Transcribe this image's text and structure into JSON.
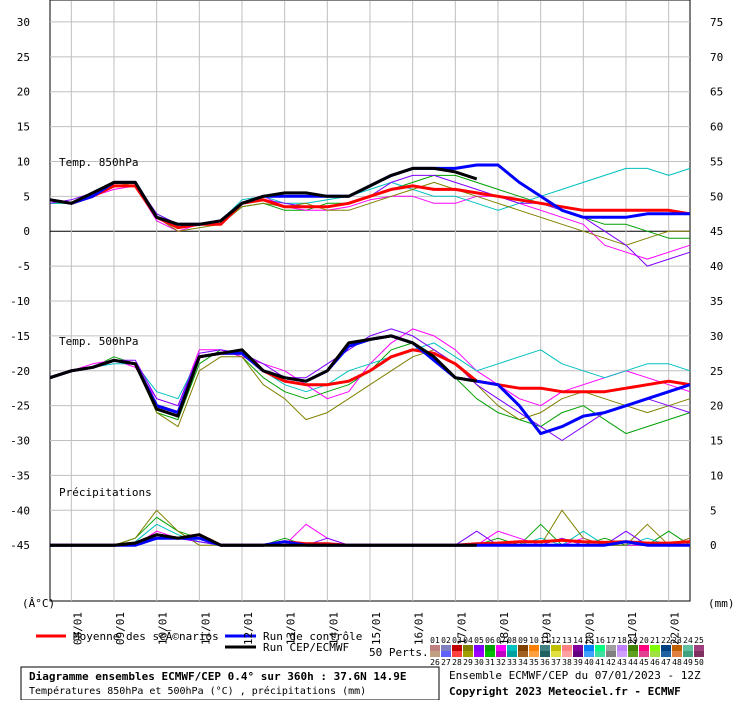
{
  "chart_data": {
    "type": "line",
    "panel_labels": [
      "Temp. 850hPa",
      "Temp. 500hPa",
      "Précipitations"
    ],
    "y_unit": "(Â°C)",
    "y2_unit": "(mm)",
    "ylim": [
      -53,
      33
    ],
    "yticks": [
      -45,
      -40,
      -35,
      -30,
      -25,
      -20,
      -15,
      -10,
      -5,
      0,
      5,
      10,
      15,
      20,
      25,
      30
    ],
    "y2lim": [
      -8,
      78
    ],
    "y2ticks": [
      0,
      5,
      10,
      15,
      20,
      25,
      30,
      35,
      40,
      45,
      50,
      55,
      60,
      65,
      70,
      75
    ],
    "xticks": [
      "08/01",
      "09/01",
      "10/01",
      "11/01",
      "12/01",
      "13/01",
      "14/01",
      "15/01",
      "16/01",
      "17/01",
      "18/01",
      "19/01",
      "20/01",
      "21/01",
      "22/01"
    ],
    "grid": true,
    "series": [
      {
        "name": "Moyenne des scÃ©narios",
        "color": "#ff0000",
        "t850": [
          4.5,
          4,
          5,
          6.5,
          6.5,
          2,
          0.5,
          1,
          1,
          4,
          4.5,
          3.5,
          3.5,
          3.5,
          4,
          5,
          6,
          6.5,
          6,
          6,
          5.5,
          5,
          4.5,
          4,
          3.5,
          3,
          3,
          3,
          3,
          3,
          2.5
        ],
        "t500": [
          -21,
          -20,
          -19.5,
          -18.5,
          -19,
          -25,
          -26,
          -18,
          -17.5,
          -17.5,
          -20,
          -21.5,
          -22,
          -22,
          -21.5,
          -20,
          -18,
          -17,
          -17.5,
          -19,
          -21.5,
          -22,
          -22.5,
          -22.5,
          -23,
          -23,
          -23,
          -22.5,
          -22,
          -21.5,
          -22
        ],
        "precip": [
          0,
          0,
          0,
          0,
          0.3,
          1.5,
          1,
          1.5,
          0,
          0,
          0,
          0.5,
          0.2,
          0.2,
          0,
          0,
          0,
          0,
          0,
          0,
          0.2,
          0.3,
          0.5,
          0.5,
          0.7,
          0.5,
          0.4,
          0.5,
          0.3,
          0.3,
          0.5
        ]
      },
      {
        "name": "Run de contrôle",
        "color": "#0000ff",
        "t850": [
          4.5,
          4,
          5,
          7,
          7,
          2,
          1,
          1,
          1.5,
          4,
          5,
          5,
          5,
          5,
          5,
          6.5,
          8,
          9,
          9,
          9,
          9.5,
          9.5,
          7,
          5,
          3,
          2,
          2,
          2,
          2.5,
          2.5,
          2.5
        ],
        "t500": [
          -21,
          -20,
          -19.5,
          -18.5,
          -19,
          -25,
          -26,
          -18,
          -17.5,
          -17.5,
          -20,
          -21,
          -21.5,
          -20,
          -16.5,
          -15.5,
          -15,
          -16,
          -18.5,
          -21,
          -21.5,
          -22,
          -25,
          -29,
          -28,
          -26.5,
          -26,
          -25,
          -24,
          -23,
          -22
        ],
        "precip": [
          0,
          0,
          0,
          0,
          0,
          1,
          1,
          1,
          0,
          0,
          0,
          0.5,
          0,
          0,
          0,
          0,
          0,
          0,
          0,
          0,
          0,
          0,
          0,
          0,
          0,
          0,
          0,
          0.5,
          0,
          0,
          0
        ]
      },
      {
        "name": "Run CEP/ECMWF",
        "color": "#000000",
        "t850": [
          4.5,
          4,
          5.5,
          7,
          7,
          2,
          1,
          1,
          1.5,
          4,
          5,
          5.5,
          5.5,
          5,
          5,
          6.5,
          8,
          9,
          9,
          8.5,
          7.5,
          null,
          null,
          null,
          null,
          null,
          null,
          null,
          null,
          null,
          null
        ],
        "t500": [
          -21,
          -20,
          -19.5,
          -18.5,
          -19,
          -25.5,
          -26.5,
          -18,
          -17.5,
          -17,
          -20,
          -21,
          -21.5,
          -20,
          -16,
          -15.5,
          -15,
          -16,
          -18,
          -21,
          -21.5,
          null,
          null,
          null,
          null,
          null,
          null,
          null,
          null,
          null,
          null
        ],
        "precip": [
          0,
          0,
          0,
          0,
          0.3,
          1.5,
          1,
          1.5,
          0,
          0,
          0,
          0,
          0,
          0,
          0,
          0,
          0,
          0,
          0,
          0,
          0,
          null,
          null,
          null,
          null,
          null,
          null,
          null,
          null,
          null,
          null
        ]
      }
    ],
    "perturbations_label": "50 Perts.",
    "perturbation_series": [
      {
        "name": "01",
        "color": "#00a000",
        "t850": [
          4,
          4,
          5,
          7,
          7,
          2,
          0.5,
          1,
          1,
          3.5,
          4,
          3,
          3,
          4,
          4,
          5,
          6,
          7,
          8,
          8,
          7,
          6,
          5,
          4,
          3,
          2,
          1,
          1,
          0,
          -1,
          -1
        ],
        "t500": [
          -21,
          -20,
          -19.5,
          -18,
          -19,
          -26,
          -27,
          -19,
          -17,
          -18,
          -21,
          -23,
          -24,
          -23,
          -22,
          -20,
          -17,
          -16,
          -18,
          -21,
          -24,
          -26,
          -27,
          -28,
          -26,
          -25,
          -27,
          -29,
          -28,
          -27,
          -26
        ],
        "precip": [
          0,
          0,
          0,
          0,
          1,
          4,
          2,
          1,
          0,
          0,
          0,
          1,
          0,
          0,
          0,
          0,
          0,
          0,
          0,
          0,
          0,
          1,
          0,
          3,
          0,
          0,
          1,
          0,
          0,
          2,
          0
        ]
      },
      {
        "name": "02",
        "color": "#ff00ff",
        "t850": [
          4.5,
          4,
          5,
          6,
          6.5,
          1.5,
          0,
          1,
          1,
          4,
          5,
          3.5,
          3,
          3,
          3.5,
          4.5,
          5,
          5,
          4,
          4,
          5,
          5,
          4,
          3,
          2,
          1,
          -2,
          -3,
          -4,
          -3,
          -2
        ],
        "t500": [
          -21,
          -20,
          -19,
          -18.5,
          -19.5,
          -24,
          -25,
          -17,
          -17,
          -18,
          -19,
          -20,
          -22,
          -24,
          -23,
          -19,
          -16,
          -14,
          -15,
          -17,
          -20,
          -22,
          -24,
          -25,
          -23,
          -22,
          -21,
          -20,
          -21,
          -22,
          -23
        ],
        "precip": [
          0,
          0,
          0,
          0,
          0,
          2,
          1,
          0.5,
          0,
          0,
          0,
          0,
          3,
          1,
          0,
          0,
          0,
          0,
          0,
          0,
          0,
          2,
          1,
          0,
          0,
          1,
          0,
          0,
          0,
          0,
          1
        ]
      },
      {
        "name": "03",
        "color": "#00c0c0",
        "t850": [
          4,
          4,
          5,
          6.5,
          6.5,
          2.5,
          1,
          1,
          1.5,
          4.5,
          5,
          4,
          4,
          4.5,
          5,
          6,
          7,
          6,
          5,
          5,
          4,
          3,
          4,
          5,
          6,
          7,
          8,
          9,
          9,
          8,
          9
        ],
        "t500": [
          -21,
          -20,
          -19.5,
          -19,
          -19,
          -23,
          -24,
          -18,
          -17.5,
          -17,
          -20,
          -22,
          -23,
          -22,
          -20,
          -19,
          -18,
          -17,
          -16,
          -18,
          -20,
          -19,
          -18,
          -17,
          -19,
          -20,
          -21,
          -20,
          -19,
          -19,
          -20
        ],
        "precip": [
          0,
          0,
          0,
          0,
          0.5,
          3,
          1.5,
          0.5,
          0,
          0,
          0,
          0,
          0,
          0,
          0,
          0,
          0,
          0,
          0,
          0,
          0,
          0,
          0,
          1,
          0,
          2,
          0,
          0,
          1,
          0,
          0
        ]
      },
      {
        "name": "04",
        "color": "#808000",
        "t850": [
          4.5,
          4,
          5,
          7,
          6.5,
          2,
          0,
          0.5,
          1,
          3.5,
          4,
          3.5,
          4,
          3,
          3,
          4,
          5,
          6,
          7,
          6,
          5,
          4,
          3,
          2,
          1,
          0,
          -1,
          -2,
          -1,
          0,
          0
        ],
        "t500": [
          -21,
          -20,
          -19.5,
          -18.5,
          -19,
          -26,
          -28,
          -20,
          -18,
          -18,
          -22,
          -24,
          -27,
          -26,
          -24,
          -22,
          -20,
          -18,
          -17,
          -19,
          -22,
          -25,
          -27,
          -26,
          -24,
          -23,
          -24,
          -25,
          -26,
          -25,
          -24
        ],
        "precip": [
          0,
          0,
          0,
          0,
          1,
          5,
          2,
          0,
          0,
          0,
          0,
          0,
          0,
          0,
          0,
          0,
          0,
          0,
          0,
          0,
          0,
          0,
          0,
          0,
          5,
          1,
          0,
          0,
          3,
          0,
          1
        ]
      },
      {
        "name": "05",
        "color": "#8000ff",
        "t850": [
          4,
          4.5,
          5.5,
          7,
          7,
          2.5,
          1,
          1,
          1.5,
          4,
          4.5,
          4,
          3.5,
          3.5,
          4,
          5,
          7,
          8,
          8,
          7,
          6,
          5,
          4,
          4,
          3,
          2,
          0,
          -2,
          -5,
          -4,
          -3
        ],
        "t500": [
          -21,
          -20,
          -19.5,
          -18.5,
          -18.5,
          -24,
          -25,
          -17.5,
          -17,
          -17.5,
          -19,
          -21,
          -21,
          -19,
          -17,
          -15,
          -14,
          -15,
          -17,
          -19,
          -22,
          -24,
          -26,
          -28,
          -30,
          -28,
          -26,
          -25,
          -24,
          -25,
          -26
        ],
        "precip": [
          0,
          0,
          0,
          0,
          0,
          1,
          1,
          0.5,
          0,
          0,
          0,
          0,
          0,
          1,
          0,
          0,
          0,
          0,
          0,
          0,
          2,
          0,
          0,
          0,
          1,
          0,
          0,
          2,
          0,
          0,
          0
        ]
      }
    ],
    "members": [
      {
        "name": "01",
        "color": "#c08080"
      },
      {
        "name": "02",
        "color": "#8080c0"
      },
      {
        "name": "03",
        "color": "#c00000"
      },
      {
        "name": "04",
        "color": "#808000"
      },
      {
        "name": "05",
        "color": "#8000ff"
      },
      {
        "name": "06",
        "color": "#00a000"
      },
      {
        "name": "07",
        "color": "#ff00ff"
      },
      {
        "name": "08",
        "color": "#00c0c0"
      },
      {
        "name": "09",
        "color": "#804000"
      },
      {
        "name": "10",
        "color": "#ff8000"
      },
      {
        "name": "11",
        "color": "#408080"
      },
      {
        "name": "12",
        "color": "#c0c000"
      },
      {
        "name": "13",
        "color": "#ff8080"
      },
      {
        "name": "14",
        "color": "#8000a0"
      },
      {
        "name": "15",
        "color": "#0080ff"
      },
      {
        "name": "16",
        "color": "#00ff80"
      },
      {
        "name": "17",
        "color": "#a0a0a0"
      },
      {
        "name": "18",
        "color": "#c080ff"
      },
      {
        "name": "19",
        "color": "#408000"
      },
      {
        "name": "20",
        "color": "#ff0080"
      },
      {
        "name": "21",
        "color": "#80ff00"
      },
      {
        "name": "22",
        "color": "#004080"
      },
      {
        "name": "23",
        "color": "#c06000"
      },
      {
        "name": "24",
        "color": "#60c0a0"
      },
      {
        "name": "25",
        "color": "#a04080"
      },
      {
        "name": "26",
        "color": "#c0a080"
      },
      {
        "name": "27",
        "color": "#6060ff"
      },
      {
        "name": "28",
        "color": "#ff4040"
      },
      {
        "name": "29",
        "color": "#a0a000"
      },
      {
        "name": "30",
        "color": "#a000ff"
      },
      {
        "name": "31",
        "color": "#00c000"
      },
      {
        "name": "32",
        "color": "#c000c0"
      },
      {
        "name": "33",
        "color": "#00a0a0"
      },
      {
        "name": "34",
        "color": "#a06020"
      },
      {
        "name": "35",
        "color": "#ffa040"
      },
      {
        "name": "36",
        "color": "#206060"
      },
      {
        "name": "37",
        "color": "#e0e040"
      },
      {
        "name": "38",
        "color": "#ffa0a0"
      },
      {
        "name": "39",
        "color": "#600080"
      },
      {
        "name": "40",
        "color": "#40a0ff"
      },
      {
        "name": "41",
        "color": "#40e0a0"
      },
      {
        "name": "42",
        "color": "#808080"
      },
      {
        "name": "43",
        "color": "#d0a0ff"
      },
      {
        "name": "44",
        "color": "#60a020"
      },
      {
        "name": "45",
        "color": "#e04090"
      },
      {
        "name": "46",
        "color": "#a0e040"
      },
      {
        "name": "47",
        "color": "#2060a0"
      },
      {
        "name": "48",
        "color": "#e08040"
      },
      {
        "name": "49",
        "color": "#40a080"
      },
      {
        "name": "50",
        "color": "#803060"
      }
    ],
    "footer": {
      "title": "Diagramme ensembles ECMWF/CEP 0.4° sur 360h : 37.6N 14.9E",
      "subtitle": "Températures 850hPa et 500hPa (°C) , précipitations (mm)",
      "run": "Ensemble ECMWF/CEP du 07/01/2023 - 12Z",
      "copyright": "Copyright 2023 Meteociel.fr - ECMWF"
    }
  }
}
